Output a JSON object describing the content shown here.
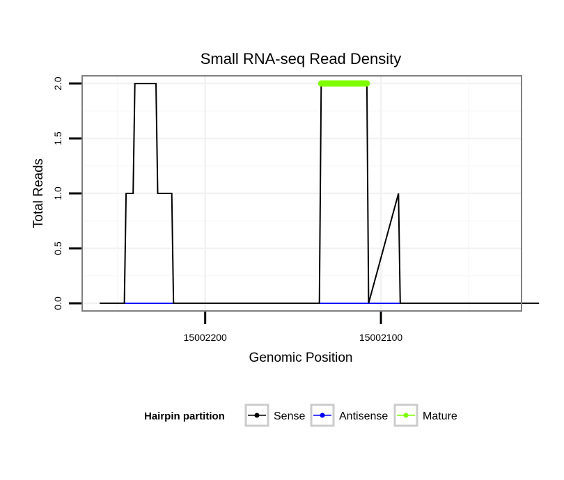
{
  "chart_data": {
    "type": "line",
    "title": "Small RNA-seq Read Density",
    "xlabel": "Genomic Position",
    "ylabel": "Total Reads",
    "x_reversed": true,
    "xlim": [
      15002270,
      15002020
    ],
    "ylim": [
      -0.07,
      2.07
    ],
    "x_ticks": [
      15002200,
      15002100
    ],
    "x_tick_labels": [
      "15002200",
      "15002100"
    ],
    "y_ticks": [
      0,
      0.5,
      1,
      1.5,
      2
    ],
    "y_tick_labels": [
      "0.0",
      "0.5",
      "1.0",
      "1.5",
      "2.0"
    ],
    "grid": true,
    "legend": {
      "title": "Hairpin partition",
      "position": "bottom",
      "entries": [
        {
          "label": "Sense",
          "color": "#000000"
        },
        {
          "label": "Antisense",
          "color": "#0000ff"
        },
        {
          "label": "Mature",
          "color": "#7fff00"
        }
      ]
    },
    "series": [
      {
        "name": "Sense",
        "color": "#000000",
        "x": [
          15002260,
          15002246,
          15002245,
          15002241,
          15002240,
          15002228,
          15002227,
          15002219,
          15002218,
          15002135,
          15002134,
          15002108,
          15002107,
          15002090,
          15002089,
          15002010
        ],
        "y": [
          0,
          0,
          1,
          1,
          2,
          2,
          1,
          1,
          0,
          0,
          2,
          2,
          0,
          1,
          0,
          0
        ]
      },
      {
        "name": "Antisense",
        "color": "#0000ff",
        "x": [
          15002246,
          15002218,
          15002135,
          15002089
        ],
        "y": [
          0,
          0,
          0,
          0
        ]
      },
      {
        "name": "Mature",
        "color": "#7fff00",
        "x": [
          15002134,
          15002108
        ],
        "y": [
          2,
          2
        ]
      }
    ]
  }
}
